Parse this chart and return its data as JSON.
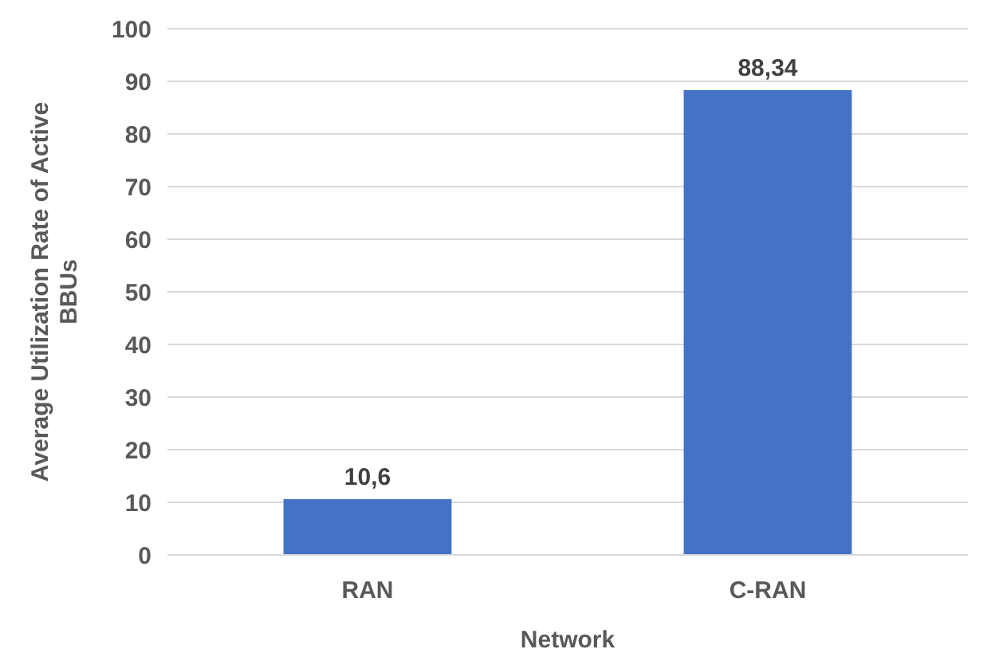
{
  "chart_data": {
    "type": "bar",
    "xlabel": "Network",
    "ylabel": "Average Utilization Rate of Active BBUs",
    "categories": [
      "RAN",
      "C-RAN"
    ],
    "values": [
      10.6,
      88.34
    ],
    "value_labels": [
      "10,6",
      "88,34"
    ],
    "color": "#4472c4",
    "ylim": [
      0,
      100
    ],
    "yticks": [
      0,
      10,
      20,
      30,
      40,
      50,
      60,
      70,
      80,
      90,
      100
    ],
    "grid": "y"
  }
}
